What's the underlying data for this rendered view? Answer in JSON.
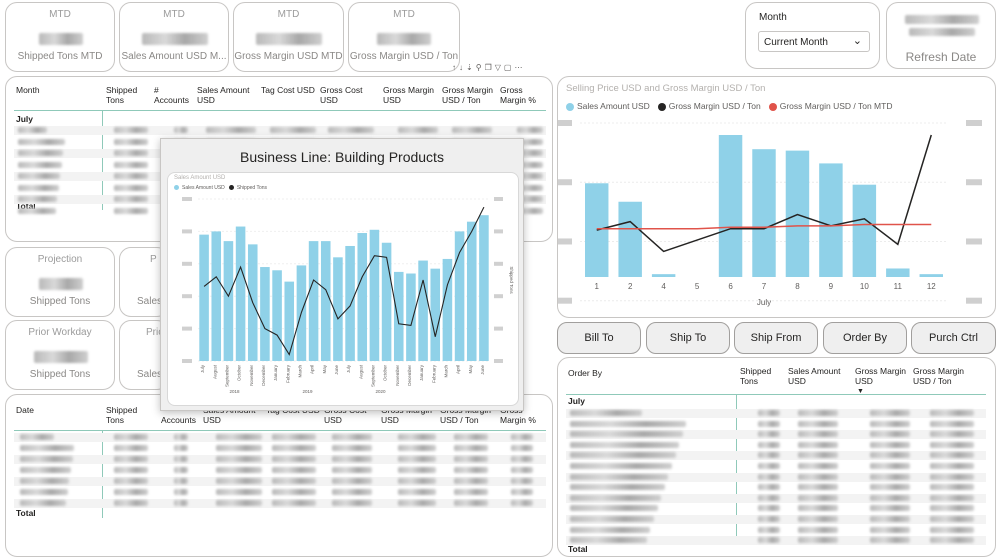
{
  "kpis_top": [
    {
      "caption": "MTD",
      "label": "Shipped Tons MTD"
    },
    {
      "caption": "MTD",
      "label": "Sales Amount USD M..."
    },
    {
      "caption": "MTD",
      "label": "Gross Margin USD MTD"
    },
    {
      "caption": "MTD",
      "label": "Gross Margin USD / Ton"
    }
  ],
  "kpis_mid": [
    {
      "caption": "Projection",
      "label": "Shipped Tons"
    },
    {
      "caption": "P",
      "label": "Sales"
    },
    {
      "caption": "Prior Workday",
      "label": "Shipped Tons"
    },
    {
      "caption": "Prio",
      "label": "Sales a"
    }
  ],
  "slicer": {
    "title": "Month",
    "value": "Current Month"
  },
  "refresh": {
    "label": "Refresh Date"
  },
  "table1": {
    "headers": [
      "Month",
      "Shipped Tons",
      "# Accounts",
      "Sales Amount USD",
      "Tag Cost USD",
      "Gross Cost USD",
      "Gross Margin USD",
      "Gross Margin USD / Ton",
      "Gross Margin %"
    ],
    "first_row": "July",
    "total": "Total"
  },
  "table2": {
    "headers": [
      "Date",
      "Shipped Tons",
      "Accounts",
      "Sales Amount USD",
      "Tag Cost USD",
      "Gross Cost USD",
      "Gross Margin USD",
      "Gross Margin USD / Ton",
      "Gross Margin %"
    ],
    "total": "Total"
  },
  "table3": {
    "headers": [
      "Order By",
      "Shipped Tons",
      "Sales Amount USD",
      "Gross Margin USD",
      "Gross Margin USD / Ton"
    ],
    "first_row": "July",
    "total": "Total"
  },
  "buttons": [
    "Bill To",
    "Ship To",
    "Ship From",
    "Order By",
    "Purch Ctrl"
  ],
  "tooltip": {
    "title": "Business Line:  Building Products",
    "chart_title": "Sales Amount USD",
    "legend": [
      "Sales Amount USD",
      "Shipped Tons"
    ],
    "right_axis_label": "Shipped Tons",
    "years": [
      "2018",
      "2019",
      "2020"
    ]
  },
  "chart_data": [
    {
      "type": "bar",
      "title": "Selling Price USD and Gross Margin USD / Ton",
      "xlabel": "July",
      "categories": [
        "1",
        "2",
        "4",
        "5",
        "6",
        "7",
        "8",
        "9",
        "10",
        "11",
        "12"
      ],
      "series": [
        {
          "name": "Sales Amount USD",
          "type": "bar",
          "color": "#8fd1e8",
          "values": [
            0.66,
            0.53,
            0.02,
            0,
            1.0,
            0.9,
            0.89,
            0.8,
            0.65,
            0.06,
            0.02
          ]
        },
        {
          "name": "Gross Margin USD / Ton",
          "type": "line",
          "color": "#252423",
          "values": [
            0.33,
            0.39,
            0.18,
            null,
            0.34,
            0.34,
            0.44,
            0.36,
            0.41,
            0.23,
            1.0
          ]
        },
        {
          "name": "Gross Margin USD / Ton MTD",
          "type": "line",
          "color": "#e0534a",
          "values": [
            0.34,
            0.34,
            0.34,
            0.34,
            0.35,
            0.35,
            0.36,
            0.36,
            0.37,
            0.37,
            0.37
          ]
        }
      ],
      "legend": "top-left",
      "grid": true
    },
    {
      "type": "bar",
      "title": "Sales Amount USD",
      "categories": [
        "July",
        "August",
        "September",
        "October",
        "November",
        "December",
        "January",
        "February",
        "March",
        "April",
        "May",
        "June",
        "July",
        "August",
        "September",
        "October",
        "November",
        "December",
        "January",
        "February",
        "March",
        "April",
        "May",
        "June"
      ],
      "series": [
        {
          "name": "Sales Amount USD",
          "type": "bar",
          "color": "#8fd1e8",
          "values": [
            0.78,
            0.8,
            0.74,
            0.83,
            0.72,
            0.58,
            0.56,
            0.49,
            0.59,
            0.74,
            0.74,
            0.64,
            0.71,
            0.79,
            0.81,
            0.73,
            0.55,
            0.54,
            0.62,
            0.57,
            0.63,
            0.8,
            0.86,
            0.9
          ]
        },
        {
          "name": "Shipped Tons",
          "type": "line",
          "color": "#252423",
          "values": [
            0.46,
            0.52,
            0.4,
            0.58,
            0.36,
            0.2,
            0.16,
            0.04,
            0.3,
            0.5,
            0.44,
            0.26,
            0.34,
            0.52,
            0.65,
            0.64,
            0.23,
            0.22,
            0.5,
            0.15,
            0.47,
            0.67,
            0.8,
            0.95
          ]
        }
      ],
      "legend": "top-left",
      "grid": true
    }
  ]
}
